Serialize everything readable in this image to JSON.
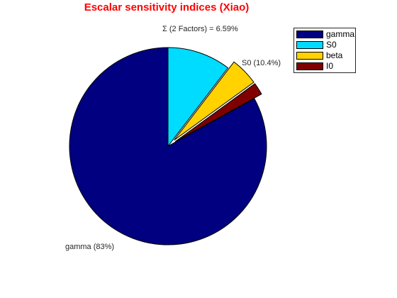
{
  "chart_data": {
    "type": "pie",
    "title": "Escalar sensitivity indices (Xiao)",
    "slices": [
      {
        "name": "gamma",
        "percent": 83.0,
        "color": "#000080",
        "exploded": false,
        "label": "gamma (83%)"
      },
      {
        "name": "S0",
        "percent": 10.4,
        "color": "#00dcff",
        "exploded": false,
        "label": "S0 (10.4%)"
      },
      {
        "name": "beta",
        "percent": 4.6,
        "color": "#ffd200",
        "exploded": true,
        "label": ""
      },
      {
        "name": "I0",
        "percent": 2.0,
        "color": "#800000",
        "exploded": true,
        "label": ""
      }
    ],
    "group_label": "Σ (2 Factors) = 6.59%",
    "legend": {
      "placement": "top-right",
      "entries": [
        "gamma",
        "S0",
        "beta",
        "I0"
      ]
    }
  }
}
